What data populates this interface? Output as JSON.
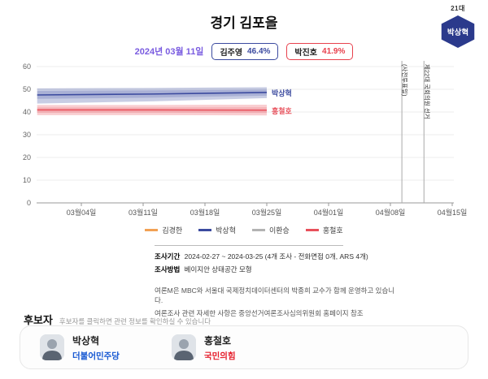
{
  "badge": {
    "term": "21대",
    "name": "박상혁",
    "color": "#2b3a8c"
  },
  "header": {
    "title": "경기 김포을",
    "date": "2024년 03월 11일",
    "date_color": "#7a5ce0",
    "scores": [
      {
        "name": "김주영",
        "pct": "46.4%",
        "color": "#3b4a9f"
      },
      {
        "name": "박진호",
        "pct": "41.9%",
        "color": "#e8414d"
      }
    ]
  },
  "chart_data": {
    "type": "line",
    "title": "경기 김포을",
    "ylim": [
      0,
      60
    ],
    "yticks": [
      0,
      10,
      20,
      30,
      40,
      50,
      60
    ],
    "x_day0_date": "2024-02-27",
    "x_ticks": [
      {
        "day": 6,
        "label": "03월04일"
      },
      {
        "day": 13,
        "label": "03월11일"
      },
      {
        "day": 20,
        "label": "03월18일"
      },
      {
        "day": 27,
        "label": "03월25일"
      },
      {
        "day": 34,
        "label": "04월01일"
      },
      {
        "day": 41,
        "label": "04월08일"
      },
      {
        "day": 48,
        "label": "04월15일"
      }
    ],
    "series": [
      {
        "name": "김경한",
        "color": "#f2a154"
      },
      {
        "name": "박상혁",
        "color": "#3b4a9f",
        "days": [
          1,
          14,
          27
        ],
        "values": [
          47.5,
          47.9,
          48.6
        ],
        "upper": [
          50.4,
          50.6,
          50.9
        ],
        "lower": [
          43.7,
          44.7,
          46.1
        ],
        "upper2": [
          49.3,
          49.5,
          49.8
        ],
        "lower2": [
          45.8,
          46.3,
          47.2
        ],
        "end_label": true
      },
      {
        "name": "이환승",
        "color": "#b3b3b3"
      },
      {
        "name": "홍철호",
        "color": "#e8505b",
        "days": [
          1,
          14,
          27
        ],
        "values": [
          40.9,
          40.9,
          40.8
        ],
        "upper": [
          43.1,
          43.1,
          43.2
        ],
        "lower": [
          38.6,
          38.6,
          38.5
        ],
        "upper2": [
          42.0,
          42.0,
          42.1
        ],
        "lower2": [
          39.7,
          39.7,
          39.6
        ],
        "end_label": true
      }
    ],
    "annotations": [
      {
        "day": 42.3,
        "label": "(사전투표일)"
      },
      {
        "day": 44.8,
        "label": "제22대 국회의원 선거"
      }
    ],
    "legend_position": "bottom",
    "grid": "horizontal"
  },
  "survey_info": {
    "period_label": "조사기간",
    "period": "2024-02-27 ~ 2024-03-25 (4개 조사 - 전화면접 0개, ARS 4개)",
    "method_label": "조사방법",
    "method": "베이지안 상태공간 모형",
    "note1": "여론M은 MBC와 서울대 국제정치데이터센터의 박종희 교수가 함께 운영하고 있습니다.",
    "note2": "여론조사 관련 자세한 사항은 중앙선거여론조사심의위원회 홈페이지 참조"
  },
  "candidates_section": {
    "title": "후보자",
    "subtitle": "후보자를 클릭하면 관련 정보를 확인하실 수 있습니다",
    "candidates": [
      {
        "name": "박상혁",
        "party": "더불어민주당",
        "party_color": "#1557d2"
      },
      {
        "name": "홍철호",
        "party": "국민의힘",
        "party_color": "#e61e2b"
      }
    ]
  }
}
